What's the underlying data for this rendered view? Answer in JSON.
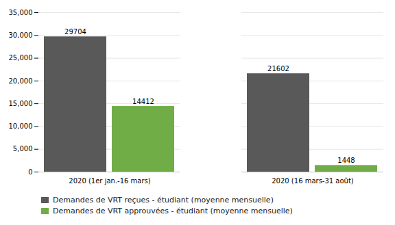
{
  "chart_data": {
    "type": "bar",
    "categories": [
      "2020 (1er jan.-16 mars)",
      "2020 (16 mars-31 août)"
    ],
    "series": [
      {
        "name": "Demandes de VRT reçues - étudiant (moyenne mensuelle)",
        "color": "#595959",
        "values": [
          29704,
          21602
        ]
      },
      {
        "name": "Demandes de VRT approuvées - étudiant (moyenne mensuelle)",
        "color": "#70AD47",
        "values": [
          14412,
          1448
        ]
      }
    ],
    "ylim": [
      0,
      35000
    ],
    "yticks": [
      0,
      {
        "value": 5000,
        "label": "5,000"
      },
      {
        "value": 10000,
        "label": "10,000"
      },
      {
        "value": 15000,
        "label": "15,000"
      },
      {
        "value": 20000,
        "label": "20,000"
      },
      {
        "value": 25000,
        "label": "25,000"
      },
      {
        "value": 30000,
        "label": "30,000"
      },
      {
        "value": 35000,
        "label": "35,000"
      }
    ],
    "grid": true,
    "data_labels": true,
    "legend": "bottom"
  }
}
